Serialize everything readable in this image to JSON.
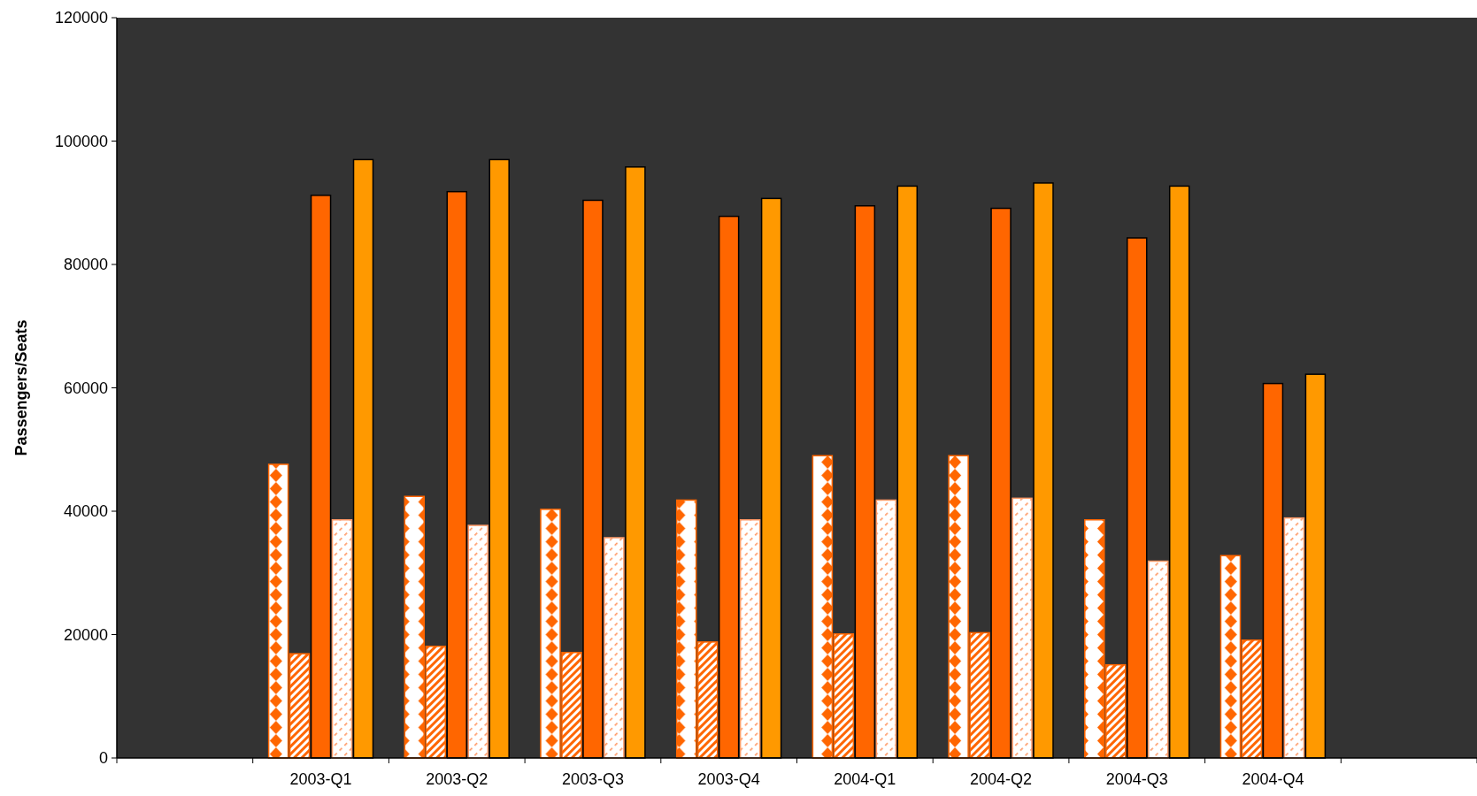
{
  "chart_data": {
    "type": "bar",
    "ylabel": "Passengers/Seats",
    "categories": [
      null,
      "2003-Q1",
      "2003-Q2",
      "2003-Q3",
      "2003-Q4",
      "2004-Q1",
      "2004-Q2",
      "2004-Q3",
      "2004-Q4",
      null
    ],
    "ylim": [
      0,
      120000
    ],
    "yticks": [
      0,
      20000,
      40000,
      60000,
      80000,
      100000,
      120000
    ],
    "grid": false,
    "legend": false,
    "series": [
      {
        "color": "#ff6600",
        "values": [
          null,
          47600,
          42400,
          40300,
          41800,
          49000,
          49000,
          38600,
          32800,
          null
        ]
      },
      {
        "color": "#ff6600",
        "values": [
          null,
          16900,
          18100,
          17100,
          18800,
          20100,
          20300,
          15100,
          19100,
          null
        ]
      },
      {
        "color": "#ff6600",
        "values": [
          null,
          91200,
          91800,
          90400,
          87800,
          89500,
          89100,
          84300,
          60700,
          null
        ]
      },
      {
        "color": "#ff9966",
        "values": [
          null,
          38600,
          37700,
          35700,
          38600,
          41800,
          42100,
          31900,
          38900,
          null
        ]
      },
      {
        "color": "#ff9900",
        "values": [
          null,
          97000,
          97000,
          95800,
          90700,
          92700,
          93200,
          92700,
          62200,
          null
        ]
      }
    ]
  }
}
